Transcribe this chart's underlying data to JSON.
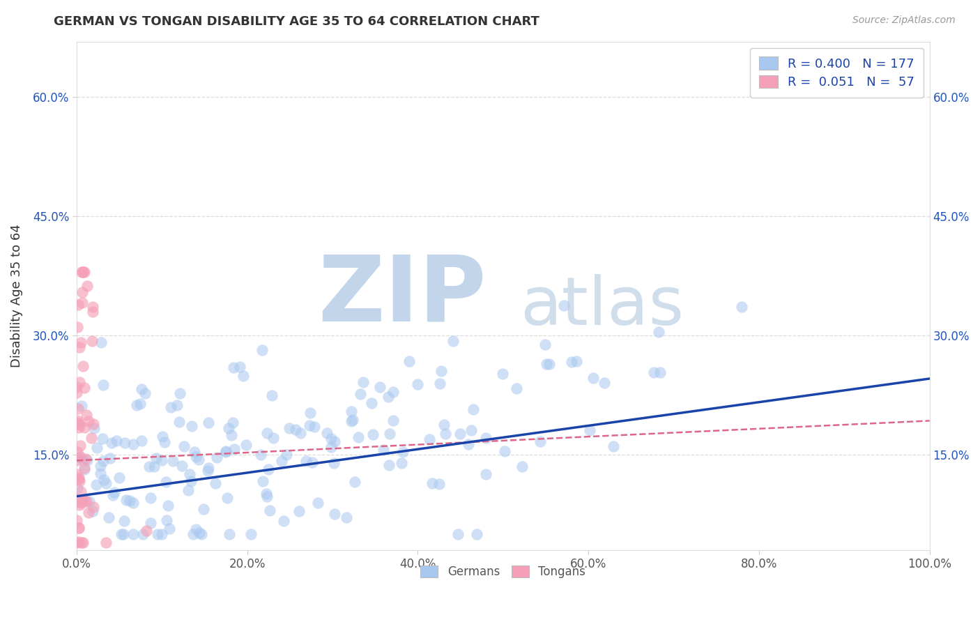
{
  "title": "GERMAN VS TONGAN DISABILITY AGE 35 TO 64 CORRELATION CHART",
  "source_text": "Source: ZipAtlas.com",
  "ylabel": "Disability Age 35 to 64",
  "xlim": [
    0,
    1.0
  ],
  "ylim": [
    0.03,
    0.67
  ],
  "x_ticks": [
    0.0,
    0.2,
    0.4,
    0.6,
    0.8,
    1.0
  ],
  "x_tick_labels": [
    "0.0%",
    "20.0%",
    "40.0%",
    "60.0%",
    "80.0%",
    "100.0%"
  ],
  "y_ticks": [
    0.15,
    0.3,
    0.45,
    0.6
  ],
  "y_tick_labels": [
    "15.0%",
    "30.0%",
    "45.0%",
    "60.0%"
  ],
  "german_R": 0.4,
  "german_N": 177,
  "tongan_R": 0.051,
  "tongan_N": 57,
  "german_color": "#A8C8F0",
  "tongan_color": "#F5A0B8",
  "german_line_color": "#1A44AA",
  "tongan_line_color": "#DD6688",
  "background_color": "#FFFFFF",
  "watermark_ZIP": "ZIP",
  "watermark_atlas": "atlas",
  "watermark_color_zip": "#B8CEE8",
  "watermark_color_atlas": "#C8D8E8",
  "grid_color": "#DDDDDD",
  "title_color": "#333333",
  "source_color": "#999999",
  "legend_label_color": "#1A44AA"
}
